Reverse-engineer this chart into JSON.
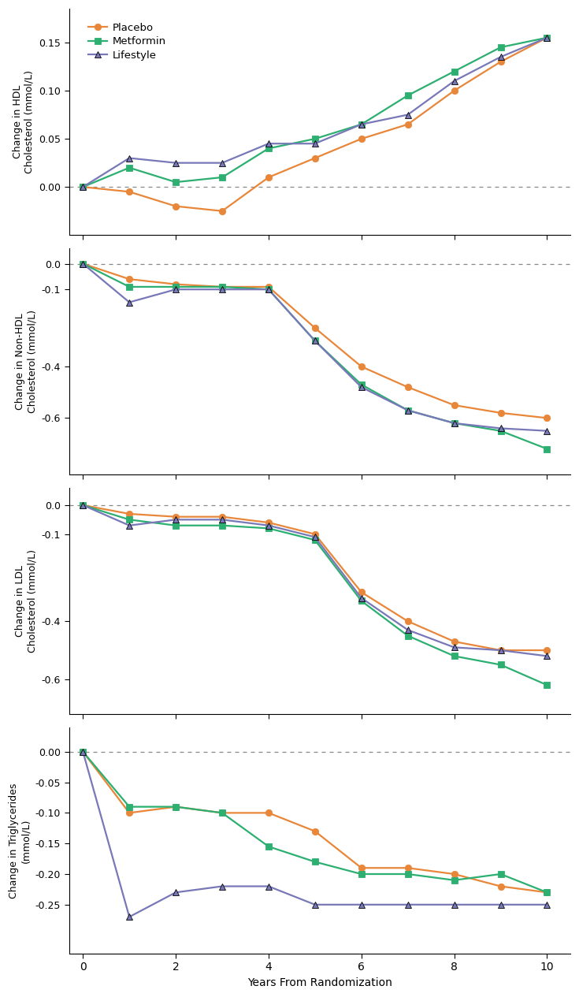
{
  "x_points": [
    0,
    1,
    2,
    3,
    4,
    5,
    6,
    7,
    8,
    9,
    10
  ],
  "hdl": {
    "placebo": [
      0.0,
      -0.005,
      -0.02,
      -0.025,
      0.01,
      0.03,
      0.05,
      0.065,
      0.1,
      0.13,
      0.155
    ],
    "metformin": [
      0.0,
      0.02,
      0.005,
      0.01,
      0.04,
      0.05,
      0.065,
      0.095,
      0.12,
      0.145,
      0.155
    ],
    "lifestyle": [
      0.0,
      0.03,
      0.025,
      0.025,
      0.045,
      0.045,
      0.065,
      0.075,
      0.11,
      0.135,
      0.155
    ]
  },
  "non_hdl": {
    "placebo": [
      0.0,
      -0.06,
      -0.08,
      -0.09,
      -0.09,
      -0.25,
      -0.4,
      -0.48,
      -0.55,
      -0.58,
      -0.6
    ],
    "metformin": [
      0.0,
      -0.09,
      -0.09,
      -0.09,
      -0.1,
      -0.3,
      -0.47,
      -0.57,
      -0.62,
      -0.65,
      -0.72
    ],
    "lifestyle": [
      0.0,
      -0.15,
      -0.1,
      -0.1,
      -0.1,
      -0.3,
      -0.48,
      -0.57,
      -0.62,
      -0.64,
      -0.65
    ]
  },
  "ldl": {
    "placebo": [
      0.0,
      -0.03,
      -0.04,
      -0.04,
      -0.06,
      -0.1,
      -0.3,
      -0.4,
      -0.47,
      -0.5,
      -0.5
    ],
    "metformin": [
      0.0,
      -0.05,
      -0.07,
      -0.07,
      -0.08,
      -0.12,
      -0.33,
      -0.45,
      -0.52,
      -0.55,
      -0.62
    ],
    "lifestyle": [
      0.0,
      -0.07,
      -0.05,
      -0.05,
      -0.07,
      -0.11,
      -0.32,
      -0.43,
      -0.49,
      -0.5,
      -0.52
    ]
  },
  "trig": {
    "placebo": [
      0.0,
      -0.1,
      -0.09,
      -0.1,
      -0.1,
      -0.13,
      -0.19,
      -0.19,
      -0.2,
      -0.22,
      -0.23
    ],
    "metformin": [
      0.0,
      -0.09,
      -0.09,
      -0.1,
      -0.155,
      -0.18,
      -0.2,
      -0.2,
      -0.21,
      -0.2,
      -0.23
    ],
    "lifestyle": [
      0.0,
      -0.27,
      -0.23,
      -0.22,
      -0.22,
      -0.25,
      -0.25,
      -0.25,
      -0.25,
      -0.25,
      -0.25
    ]
  },
  "colors": {
    "placebo": "#E8873A",
    "metformin": "#2CAF70",
    "lifestyle": "#7878B8"
  },
  "marker_colors": {
    "placebo": "#E8873A",
    "metformin": "#2CAF70",
    "lifestyle": "#7878B8"
  },
  "markers": {
    "placebo": "o",
    "metformin": "s",
    "lifestyle": "^"
  },
  "ylims": {
    "hdl": [
      -0.05,
      0.185
    ],
    "non_hdl": [
      -0.82,
      0.06
    ],
    "ldl": [
      -0.72,
      0.06
    ],
    "trig": [
      -0.33,
      0.04
    ]
  },
  "yticks": {
    "hdl": [
      0.0,
      0.05,
      0.1,
      0.15
    ],
    "non_hdl": [
      0.0,
      -0.1,
      -0.4,
      -0.6
    ],
    "ldl": [
      0.0,
      -0.1,
      -0.4,
      -0.6
    ],
    "trig": [
      0.0,
      -0.05,
      -0.1,
      -0.15,
      -0.2,
      -0.25
    ]
  },
  "ytick_labels": {
    "hdl": [
      "0.00",
      "0.05",
      "0.10",
      "0.15"
    ],
    "non_hdl": [
      "0.0",
      "-0.1",
      "-0.4",
      "-0.6"
    ],
    "ldl": [
      "0.0",
      "-0.1",
      "-0.4",
      "-0.6"
    ],
    "trig": [
      "0.00",
      "-0.05",
      "-0.10",
      "-0.15",
      "-0.20",
      "-0.25"
    ]
  },
  "ylabels": [
    "Change in HDL\nCholesterol (mmol/L)",
    "Change in Non-HDL\nCholesterol (mmol/L)",
    "Change in LDL\nCholesterol (mmol/L)",
    "Change in Triglycerides\n(mmol/L)"
  ],
  "xlabel": "Years From Randomization",
  "xticks": [
    0,
    2,
    4,
    6,
    8,
    10
  ],
  "figsize": [
    7.35,
    12.65
  ],
  "dpi": 100
}
